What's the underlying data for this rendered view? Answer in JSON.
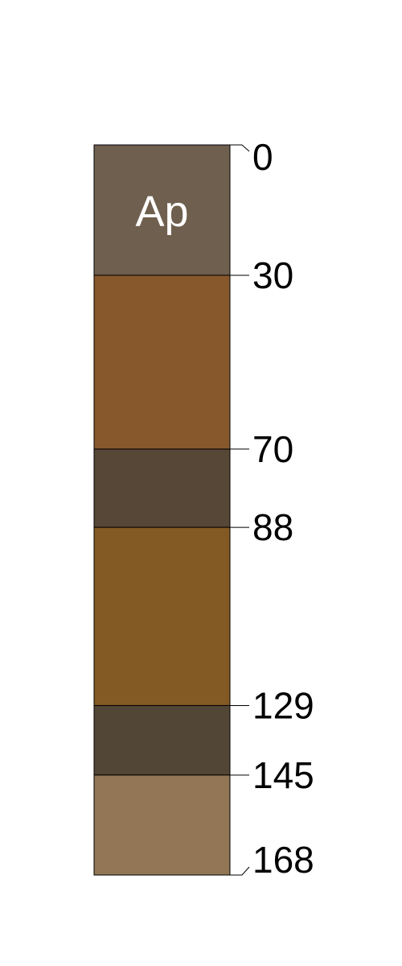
{
  "profile": {
    "horizons": [
      {
        "name": "Ap",
        "top": 0,
        "bottom": 30,
        "color": "#6f5f4e"
      },
      {
        "name": "",
        "top": 30,
        "bottom": 70,
        "color": "#87582b"
      },
      {
        "name": "",
        "top": 70,
        "bottom": 88,
        "color": "#574737"
      },
      {
        "name": "",
        "top": 88,
        "bottom": 129,
        "color": "#835a24"
      },
      {
        "name": "",
        "top": 129,
        "bottom": 145,
        "color": "#524636"
      },
      {
        "name": "",
        "top": 145,
        "bottom": 168,
        "color": "#927655"
      }
    ],
    "depth_labels": [
      "0",
      "30",
      "70",
      "88",
      "129",
      "145",
      "168"
    ],
    "outline_color": "#000000"
  }
}
